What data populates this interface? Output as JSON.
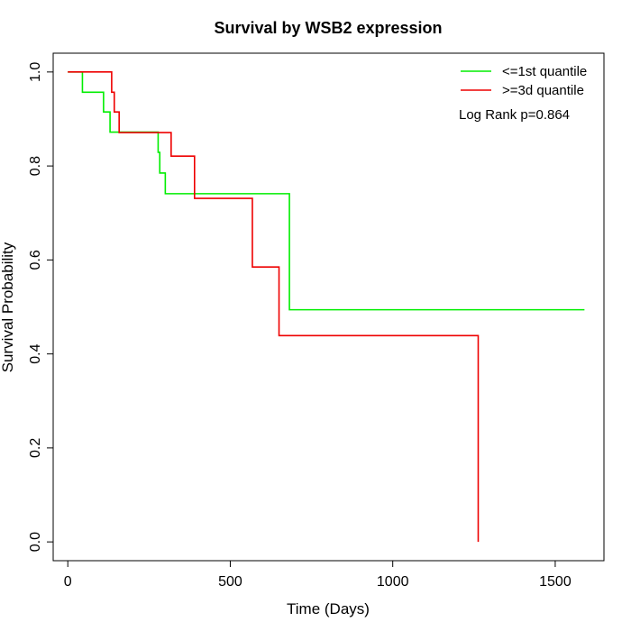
{
  "chart_data": {
    "type": "line",
    "title": "Survival by WSB2 expression",
    "xlabel": "Time (Days)",
    "ylabel": "Survival Probability",
    "xlim": [
      -45,
      1650
    ],
    "ylim": [
      -0.04,
      1.04
    ],
    "x_ticks": [
      0,
      500,
      1000,
      1500
    ],
    "x_tick_labels": [
      "0",
      "500",
      "1000",
      "1500"
    ],
    "y_ticks": [
      0.0,
      0.2,
      0.4,
      0.6,
      0.8,
      1.0
    ],
    "y_tick_labels": [
      "0.0",
      "0.2",
      "0.4",
      "0.6",
      "0.8",
      "1.0"
    ],
    "grid": false,
    "legend_position": "top-right",
    "annotation": "Log Rank p=0.864",
    "series": [
      {
        "name": "<=1st quantile",
        "color": "#00ee00",
        "steps": [
          [
            0,
            1.0
          ],
          [
            45,
            0.957
          ],
          [
            110,
            0.915
          ],
          [
            130,
            0.872
          ],
          [
            278,
            0.829
          ],
          [
            283,
            0.785
          ],
          [
            300,
            0.741
          ],
          [
            682,
            0.494
          ],
          [
            1590,
            0.494
          ]
        ]
      },
      {
        "name": ">=3d quantile",
        "color": "#ee0000",
        "steps": [
          [
            0,
            1.0
          ],
          [
            135,
            0.957
          ],
          [
            143,
            0.915
          ],
          [
            158,
            0.871
          ],
          [
            318,
            0.821
          ],
          [
            390,
            0.731
          ],
          [
            568,
            0.585
          ],
          [
            650,
            0.439
          ],
          [
            1263,
            0.0
          ]
        ]
      }
    ]
  }
}
